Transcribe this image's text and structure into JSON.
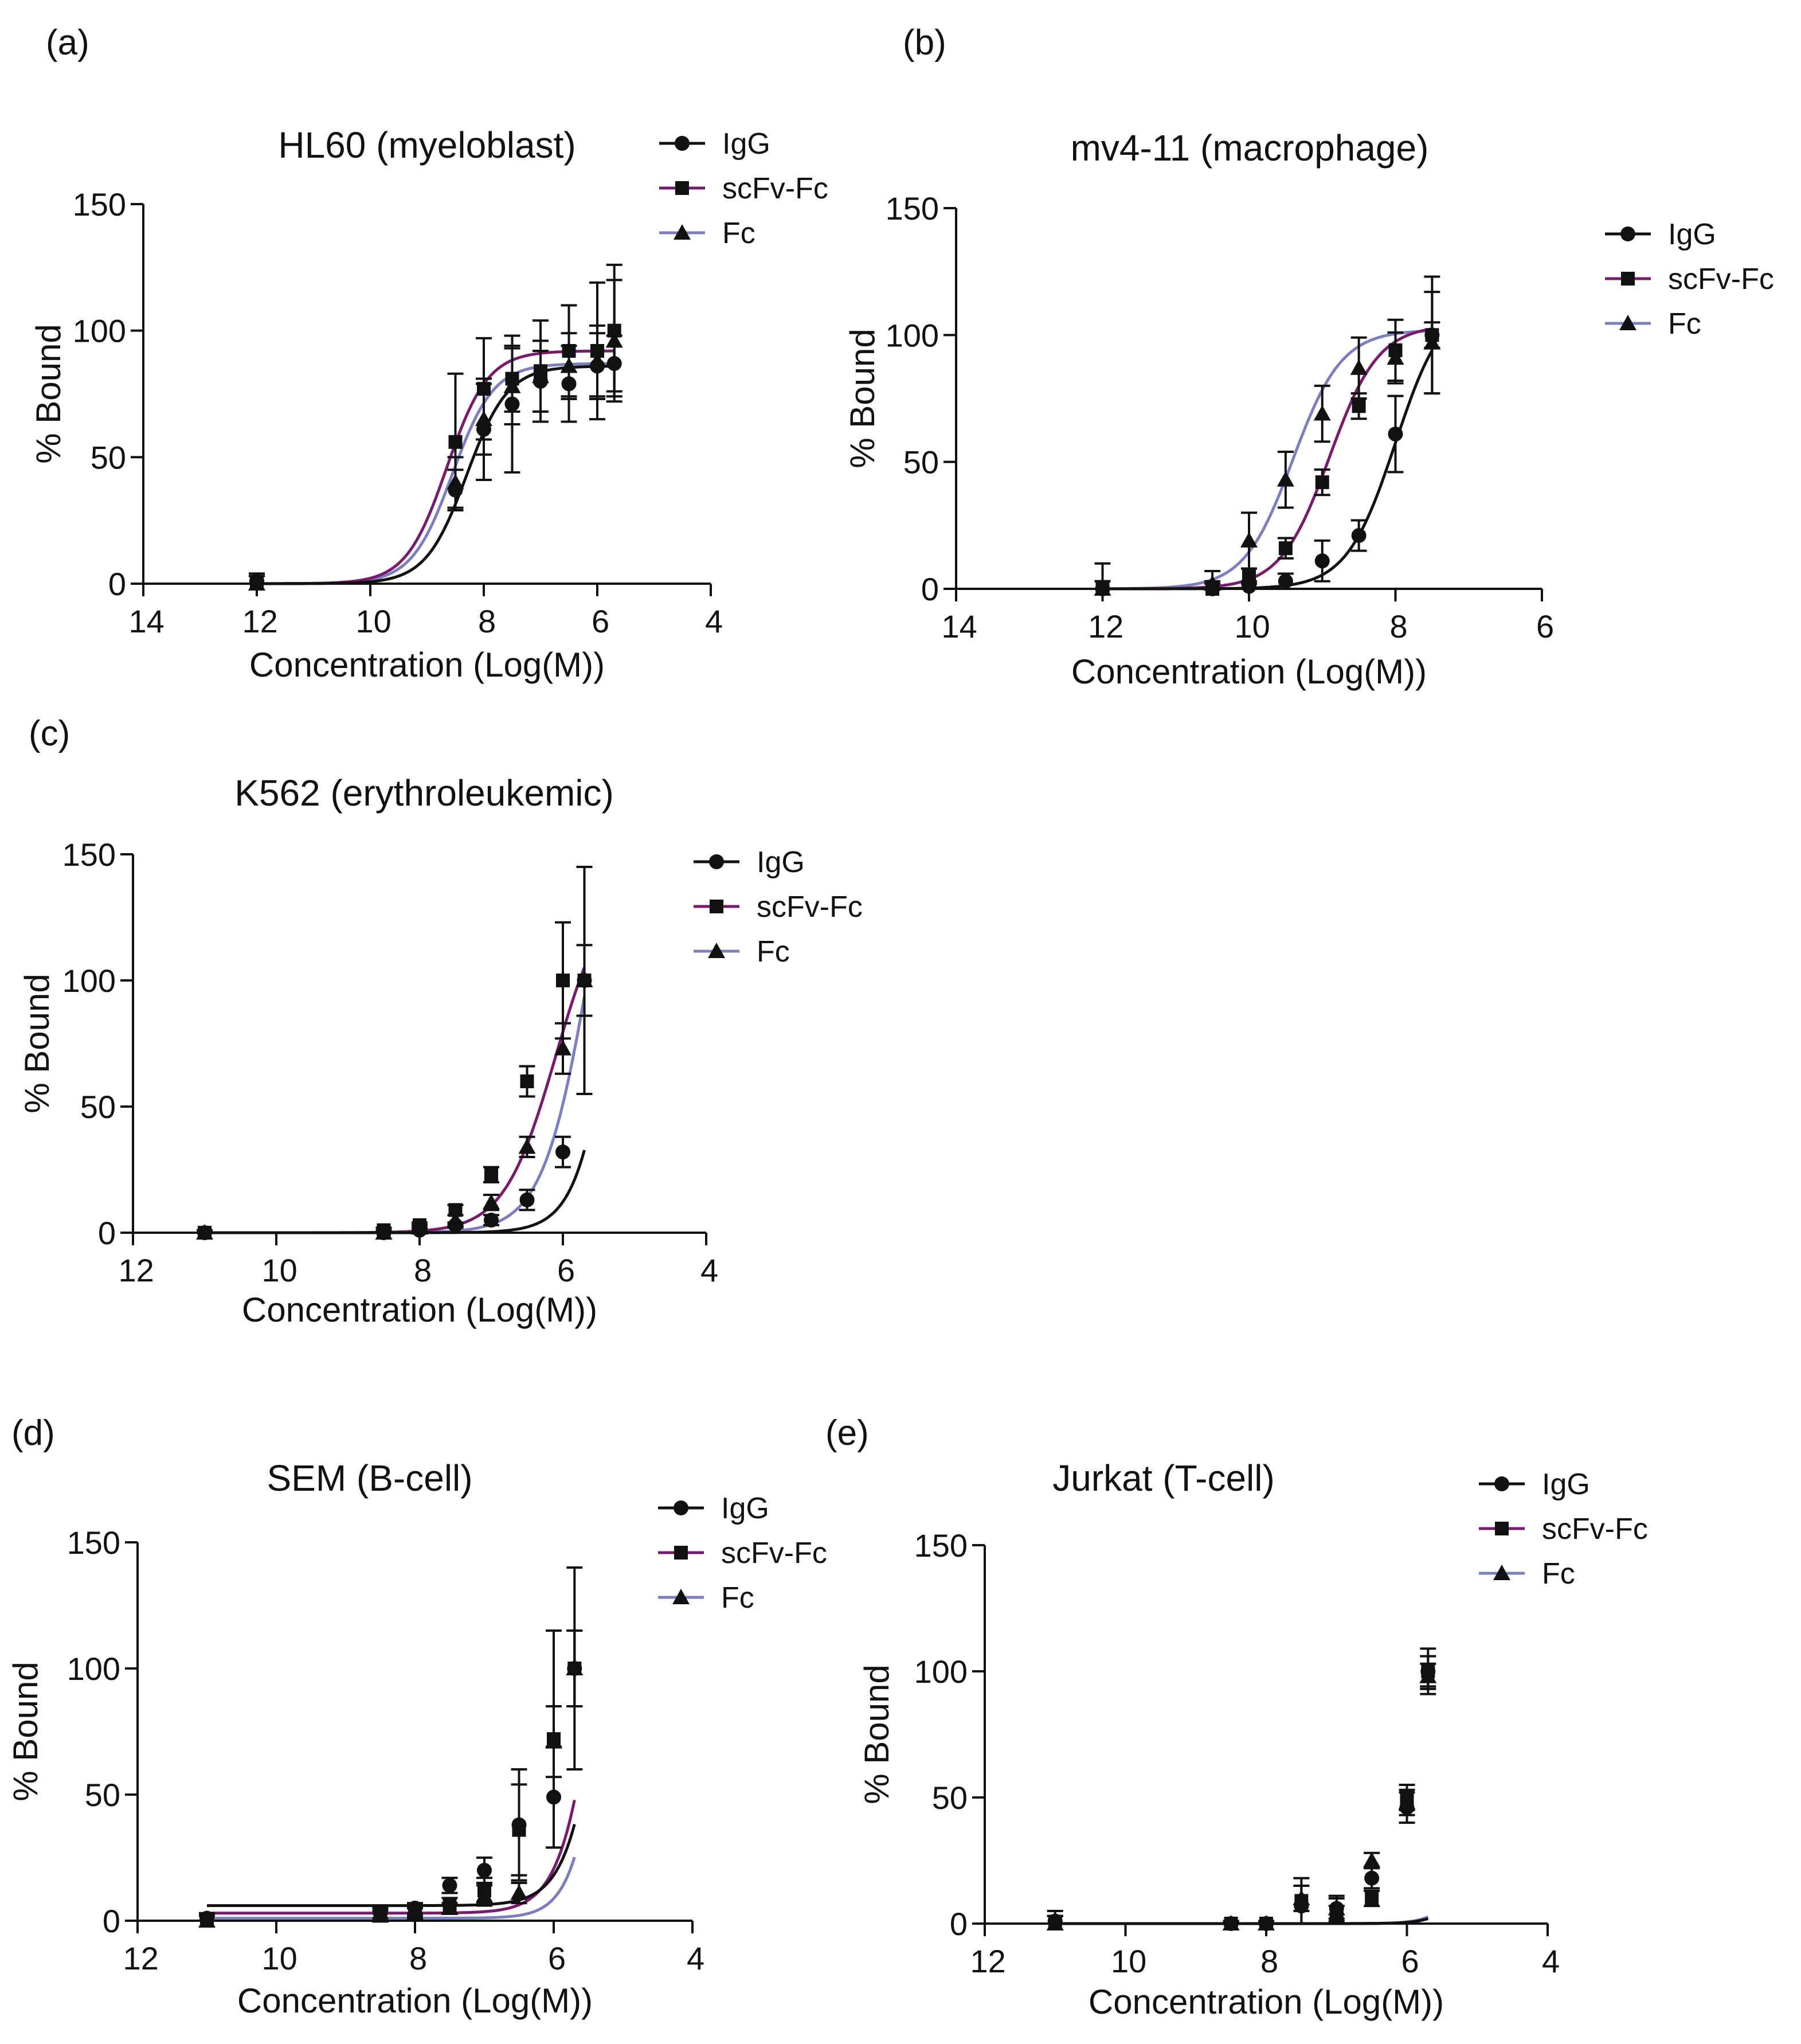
{
  "figure": {
    "colors": {
      "IgG": "#111111",
      "scFv-Fc": "#7a1a6e",
      "Fc": "#7b7fbf",
      "axis": "#111111"
    }
  },
  "chart_data": [
    {
      "type": "line",
      "panel": "(a)",
      "title": "HL60 (myeloblast)",
      "xlabel": "Concentration (Log(M))",
      "ylabel": "% Bound",
      "xlim": [
        -14,
        -4
      ],
      "ylim": [
        0,
        150
      ],
      "x_ticks": [
        -14,
        -12,
        -10,
        -8,
        -6,
        -4
      ],
      "x_tick_labels": [
        " 14",
        " 12",
        " 10",
        " 8",
        " 6",
        " 4"
      ],
      "y_ticks": [
        0,
        50,
        100,
        150
      ],
      "y_tick_labels": [
        "0",
        "50",
        "100",
        "150"
      ],
      "legend_position": "top-right",
      "series": [
        {
          "name": "IgG",
          "marker": "circle",
          "fit": {
            "bottom": 0,
            "top": 86,
            "logec50": -8.3,
            "hill": 1.2
          },
          "points": [
            {
              "x": -12,
              "y": 1,
              "err": 3
            },
            {
              "x": -8.5,
              "y": 37,
              "err": 8
            },
            {
              "x": -8,
              "y": 61,
              "err": 20
            },
            {
              "x": -7.5,
              "y": 71,
              "err": 27
            },
            {
              "x": -7,
              "y": 80,
              "err": 12
            },
            {
              "x": -6.5,
              "y": 79,
              "err": 15
            },
            {
              "x": -6,
              "y": 86,
              "err": 13
            },
            {
              "x": -5.7,
              "y": 87,
              "err": 11
            }
          ]
        },
        {
          "name": "scFv-Fc",
          "marker": "square",
          "fit": {
            "bottom": 0,
            "top": 92,
            "logec50": -8.65,
            "hill": 1.2
          },
          "points": [
            {
              "x": -12,
              "y": 0,
              "err": 3
            },
            {
              "x": -8.5,
              "y": 56,
              "err": 27
            },
            {
              "x": -8,
              "y": 77,
              "err": 20
            },
            {
              "x": -7.5,
              "y": 81,
              "err": 13
            },
            {
              "x": -7,
              "y": 84,
              "err": 20
            },
            {
              "x": -6.5,
              "y": 92,
              "err": 18
            },
            {
              "x": -6,
              "y": 92,
              "err": 27
            },
            {
              "x": -5.7,
              "y": 100,
              "err": 26
            }
          ]
        },
        {
          "name": "Fc",
          "marker": "triangle",
          "fit": {
            "bottom": 0,
            "top": 87,
            "logec50": -8.55,
            "hill": 1.2
          },
          "points": [
            {
              "x": -12,
              "y": 0,
              "err": 3
            },
            {
              "x": -8.5,
              "y": 40,
              "err": 10
            },
            {
              "x": -8,
              "y": 65,
              "err": 14
            },
            {
              "x": -7.5,
              "y": 78,
              "err": 15
            },
            {
              "x": -7,
              "y": 82,
              "err": 14
            },
            {
              "x": -6.5,
              "y": 86,
              "err": 13
            },
            {
              "x": -6,
              "y": 88,
              "err": 14
            },
            {
              "x": -5.7,
              "y": 96,
              "err": 24
            }
          ]
        }
      ]
    },
    {
      "type": "line",
      "panel": "(b)",
      "title": "mv4-11 (macrophage)",
      "xlabel": "Concentration (Log(M))",
      "ylabel": "% Bound",
      "xlim": [
        -14,
        -6
      ],
      "ylim": [
        0,
        150
      ],
      "x_ticks": [
        -14,
        -12,
        -10,
        -8,
        -6
      ],
      "x_tick_labels": [
        " 14",
        " 12",
        " 10",
        " 8",
        " 6"
      ],
      "y_ticks": [
        0,
        50,
        100,
        150
      ],
      "y_tick_labels": [
        "0",
        "50",
        "100",
        "150"
      ],
      "legend_position": "right",
      "series": [
        {
          "name": "IgG",
          "marker": "circle",
          "fit": {
            "bottom": 0,
            "top": 115,
            "logec50": -8.0,
            "hill": 1.3
          },
          "points": [
            {
              "x": -12,
              "y": 0,
              "err": 10
            },
            {
              "x": -10.5,
              "y": 0,
              "err": 2
            },
            {
              "x": -10,
              "y": 1,
              "err": 2
            },
            {
              "x": -9.5,
              "y": 3,
              "err": 3
            },
            {
              "x": -9,
              "y": 11,
              "err": 8
            },
            {
              "x": -8.5,
              "y": 21,
              "err": 6
            },
            {
              "x": -8,
              "y": 61,
              "err": 15
            },
            {
              "x": -7.5,
              "y": 100,
              "err": 23
            }
          ]
        },
        {
          "name": "scFv-Fc",
          "marker": "square",
          "fit": {
            "bottom": 0,
            "top": 104,
            "logec50": -8.9,
            "hill": 1.3
          },
          "points": [
            {
              "x": -12,
              "y": 0,
              "err": 3
            },
            {
              "x": -10.5,
              "y": 0,
              "err": 3
            },
            {
              "x": -10,
              "y": 5,
              "err": 3
            },
            {
              "x": -9.5,
              "y": 16,
              "err": 4
            },
            {
              "x": -9,
              "y": 42,
              "err": 5
            },
            {
              "x": -8.5,
              "y": 72,
              "err": 5
            },
            {
              "x": -8,
              "y": 94,
              "err": 12
            },
            {
              "x": -7.5,
              "y": 100,
              "err": 5
            }
          ]
        },
        {
          "name": "Fc",
          "marker": "triangle",
          "fit": {
            "bottom": 0,
            "top": 102,
            "logec50": -9.4,
            "hill": 1.3
          },
          "points": [
            {
              "x": -12,
              "y": 0,
              "err": 3
            },
            {
              "x": -10.5,
              "y": 2,
              "err": 5
            },
            {
              "x": -10,
              "y": 19,
              "err": 11
            },
            {
              "x": -9.5,
              "y": 43,
              "err": 11
            },
            {
              "x": -9,
              "y": 69,
              "err": 11
            },
            {
              "x": -8.5,
              "y": 87,
              "err": 12
            },
            {
              "x": -8,
              "y": 91,
              "err": 10
            },
            {
              "x": -7.5,
              "y": 97,
              "err": 20
            }
          ]
        }
      ]
    },
    {
      "type": "line",
      "panel": "(c)",
      "title": "K562 (erythroleukemic)",
      "xlabel": "Concentration (Log(M))",
      "ylabel": "% Bound",
      "xlim": [
        -12,
        -4
      ],
      "ylim": [
        0,
        150
      ],
      "x_ticks": [
        -12,
        -10,
        -8,
        -6,
        -4
      ],
      "x_tick_labels": [
        " 12",
        " 10",
        " 8",
        " 6",
        " 4"
      ],
      "y_ticks": [
        0,
        50,
        100,
        150
      ],
      "y_tick_labels": [
        "0",
        "50",
        "100",
        "150"
      ],
      "legend_position": "top-right",
      "series": [
        {
          "name": "IgG",
          "marker": "circle",
          "fit": {
            "bottom": 0,
            "top": 400,
            "logec50": -5.0,
            "hill": 1.5
          },
          "points": [
            {
              "x": -11,
              "y": 0,
              "err": 1
            },
            {
              "x": -8.5,
              "y": 0,
              "err": 1
            },
            {
              "x": -8,
              "y": 1,
              "err": 1
            },
            {
              "x": -7.5,
              "y": 3,
              "err": 1
            },
            {
              "x": -7,
              "y": 5,
              "err": 2
            },
            {
              "x": -6.5,
              "y": 13,
              "err": 4
            },
            {
              "x": -6,
              "y": 32,
              "err": 6
            },
            {
              "x": -5.7,
              "y": 100,
              "err": 45
            }
          ]
        },
        {
          "name": "scFv-Fc",
          "marker": "square",
          "fit": {
            "bottom": 0,
            "top": 140,
            "logec50": -6.1,
            "hill": 1.2
          },
          "points": [
            {
              "x": -11,
              "y": 0,
              "err": 1
            },
            {
              "x": -8.5,
              "y": 1,
              "err": 1
            },
            {
              "x": -8,
              "y": 3,
              "err": 1
            },
            {
              "x": -7.5,
              "y": 9,
              "err": 2
            },
            {
              "x": -7,
              "y": 23,
              "err": 3
            },
            {
              "x": -6.5,
              "y": 60,
              "err": 6
            },
            {
              "x": -6,
              "y": 100,
              "err": 23
            },
            {
              "x": -5.7,
              "y": 100,
              "err": 14
            }
          ]
        },
        {
          "name": "Fc",
          "marker": "triangle",
          "fit": {
            "bottom": 0,
            "top": 220,
            "logec50": -5.6,
            "hill": 1.3
          },
          "points": [
            {
              "x": -11,
              "y": 0,
              "err": 1
            },
            {
              "x": -8.5,
              "y": 0,
              "err": 1
            },
            {
              "x": -8,
              "y": 2,
              "err": 1
            },
            {
              "x": -7.5,
              "y": 5,
              "err": 2
            },
            {
              "x": -7,
              "y": 12,
              "err": 3
            },
            {
              "x": -6.5,
              "y": 34,
              "err": 4
            },
            {
              "x": -6,
              "y": 73,
              "err": 10
            },
            {
              "x": -5.7,
              "y": 100,
              "err": 45
            }
          ]
        }
      ]
    },
    {
      "type": "line",
      "panel": "(d)",
      "title": "SEM (B-cell)",
      "xlabel": "Concentration (Log(M))",
      "ylabel": "% Bound",
      "xlim": [
        -12,
        -4
      ],
      "ylim": [
        0,
        150
      ],
      "x_ticks": [
        -12,
        -10,
        -8,
        -6,
        -4
      ],
      "x_tick_labels": [
        " 12",
        " 10",
        " 8",
        " 6",
        " 4"
      ],
      "y_ticks": [
        0,
        50,
        100,
        150
      ],
      "y_tick_labels": [
        "0",
        "50",
        "100",
        "150"
      ],
      "legend_position": "top-right",
      "series": [
        {
          "name": "IgG",
          "marker": "circle",
          "fit": {
            "bottom": 6,
            "top": 400,
            "logec50": -5.0,
            "hill": 1.5
          },
          "points": [
            {
              "x": -11,
              "y": 1,
              "err": 2
            },
            {
              "x": -8.5,
              "y": 3,
              "err": 2
            },
            {
              "x": -8,
              "y": 5,
              "err": 2
            },
            {
              "x": -7.5,
              "y": 14,
              "err": 3
            },
            {
              "x": -7,
              "y": 20,
              "err": 5
            },
            {
              "x": -6.5,
              "y": 38,
              "err": 22
            },
            {
              "x": -6,
              "y": 49,
              "err": 20
            },
            {
              "x": -5.7,
              "y": 100,
              "err": 40
            }
          ]
        },
        {
          "name": "scFv-Fc",
          "marker": "square",
          "fit": {
            "bottom": 3,
            "top": 300,
            "logec50": -5.2,
            "hill": 1.5
          },
          "points": [
            {
              "x": -11,
              "y": 0,
              "err": 2
            },
            {
              "x": -8.5,
              "y": 2,
              "err": 2
            },
            {
              "x": -8,
              "y": 4,
              "err": 2
            },
            {
              "x": -7.5,
              "y": 6,
              "err": 3
            },
            {
              "x": -7,
              "y": 12,
              "err": 5
            },
            {
              "x": -6.5,
              "y": 36,
              "err": 18
            },
            {
              "x": -6,
              "y": 72,
              "err": 43
            },
            {
              "x": -5.7,
              "y": 100,
              "err": 15
            }
          ]
        },
        {
          "name": "Fc",
          "marker": "triangle",
          "fit": {
            "bottom": 1,
            "top": 400,
            "logec50": -5.0,
            "hill": 1.7
          },
          "points": [
            {
              "x": -11,
              "y": 0,
              "err": 2
            },
            {
              "x": -8.5,
              "y": 2,
              "err": 2
            },
            {
              "x": -8,
              "y": 3,
              "err": 2
            },
            {
              "x": -7.5,
              "y": 5,
              "err": 2
            },
            {
              "x": -7,
              "y": 10,
              "err": 4
            },
            {
              "x": -6.5,
              "y": 11,
              "err": 4
            },
            {
              "x": -6,
              "y": 71,
              "err": 14
            },
            {
              "x": -5.7,
              "y": 100,
              "err": 15
            }
          ]
        }
      ]
    },
    {
      "type": "line",
      "panel": "(e)",
      "title": "Jurkat (T-cell)",
      "xlabel": "Concentration (Log(M))",
      "ylabel": "% Bound",
      "xlim": [
        -12,
        -4
      ],
      "ylim": [
        0,
        150
      ],
      "x_ticks": [
        -12,
        -10,
        -8,
        -6,
        -4
      ],
      "x_tick_labels": [
        " 12",
        " 10",
        " 8",
        " 6",
        " 4"
      ],
      "y_ticks": [
        0,
        50,
        100,
        150
      ],
      "y_tick_labels": [
        "0",
        "50",
        "100",
        "150"
      ],
      "legend_position": "top-right",
      "series": [
        {
          "name": "IgG",
          "marker": "circle",
          "fit": {
            "bottom": 0,
            "top": 2000,
            "logec50": -4.2,
            "hill": 2.0
          },
          "points": [
            {
              "x": -11,
              "y": 1,
              "err": 4
            },
            {
              "x": -8.5,
              "y": 0,
              "err": 1
            },
            {
              "x": -8,
              "y": 0,
              "err": 1
            },
            {
              "x": -7.5,
              "y": 7,
              "err": 8
            },
            {
              "x": -7,
              "y": 6,
              "err": 5
            },
            {
              "x": -6.5,
              "y": 18,
              "err": 4
            },
            {
              "x": -6,
              "y": 46,
              "err": 6
            },
            {
              "x": -5.7,
              "y": 100,
              "err": 6
            }
          ]
        },
        {
          "name": "scFv-Fc",
          "marker": "square",
          "fit": {
            "bottom": 0,
            "top": 2000,
            "logec50": -4.2,
            "hill": 2.0
          },
          "points": [
            {
              "x": -11,
              "y": 0,
              "err": 3
            },
            {
              "x": -8.5,
              "y": 0,
              "err": 1
            },
            {
              "x": -8,
              "y": 0,
              "err": 1
            },
            {
              "x": -7.5,
              "y": 9,
              "err": 9
            },
            {
              "x": -7,
              "y": 3,
              "err": 4
            },
            {
              "x": -6.5,
              "y": 10,
              "err": 3
            },
            {
              "x": -6,
              "y": 50,
              "err": 5
            },
            {
              "x": -5.7,
              "y": 100,
              "err": 9
            }
          ]
        },
        {
          "name": "Fc",
          "marker": "triangle",
          "fit": {
            "bottom": 0,
            "top": 1700,
            "logec50": -4.3,
            "hill": 2.0
          },
          "points": [
            {
              "x": -11,
              "y": 0,
              "err": 3
            },
            {
              "x": -8.5,
              "y": 0,
              "err": 1
            },
            {
              "x": -8,
              "y": 0,
              "err": 1
            },
            {
              "x": -7.5,
              "y": 10,
              "err": 5
            },
            {
              "x": -7,
              "y": 6,
              "err": 4
            },
            {
              "x": -6.5,
              "y": 25,
              "err": 3
            },
            {
              "x": -6,
              "y": 48,
              "err": 5
            },
            {
              "x": -5.7,
              "y": 98,
              "err": 5
            }
          ]
        }
      ]
    }
  ]
}
